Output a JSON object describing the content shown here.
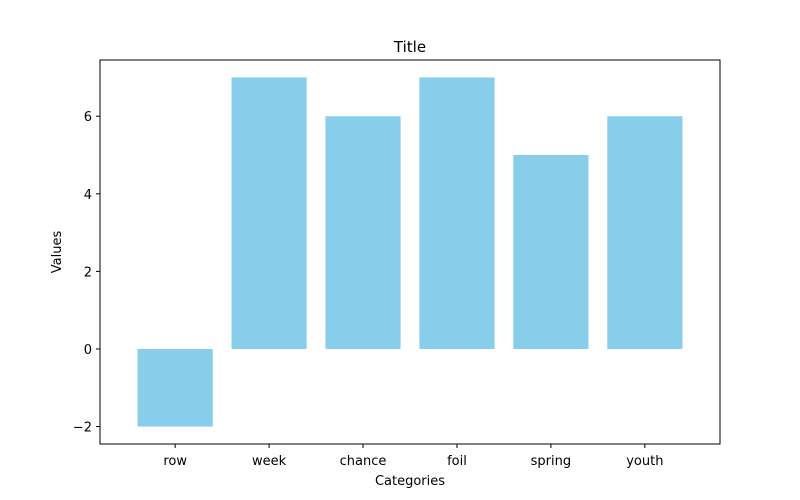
{
  "chart_data": {
    "type": "bar",
    "title": "Title",
    "xlabel": "Categories",
    "ylabel": "Values",
    "categories": [
      "row",
      "week",
      "chance",
      "foil",
      "spring",
      "youth"
    ],
    "values": [
      -2,
      7,
      6,
      7,
      5,
      6
    ],
    "ylim": [
      -2.45,
      7.45
    ],
    "yticks": [
      -2,
      0,
      2,
      4,
      6
    ],
    "ytick_labels": [
      "−2",
      "0",
      "2",
      "4",
      "6"
    ],
    "bar_color": "#87ceeb",
    "grid": false,
    "legend": "none"
  }
}
